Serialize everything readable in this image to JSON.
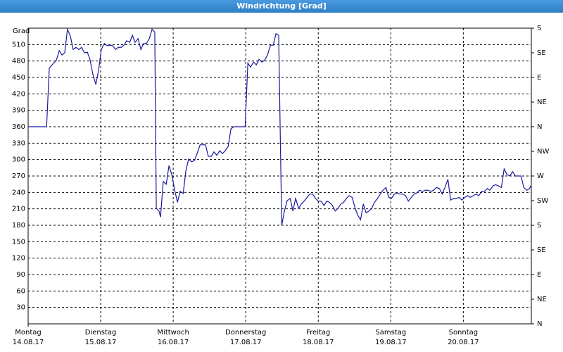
{
  "chart_data": {
    "type": "line",
    "title": "Windrichtung [Grad]",
    "y_label": "Grad",
    "color": "#1a1aa0",
    "grid": true,
    "xlim": [
      0,
      166.5
    ],
    "xticks": [
      {
        "value": 0,
        "label": "Montag\n14.08.17"
      },
      {
        "value": 24,
        "label": "Dienstag\n15.08.17"
      },
      {
        "value": 48,
        "label": "Mittwoch\n16.08.17"
      },
      {
        "value": 72,
        "label": "Donnerstag\n17.08.17"
      },
      {
        "value": 96,
        "label": "Freitag\n18.08.17"
      },
      {
        "value": 120,
        "label": "Samstag\n19.08.17"
      },
      {
        "value": 144,
        "label": "Sonntag\n20.08.17"
      }
    ],
    "ylim": [
      0,
      540
    ],
    "yticks": [
      30,
      60,
      90,
      120,
      150,
      180,
      210,
      240,
      270,
      300,
      330,
      360,
      390,
      420,
      450,
      480,
      510
    ],
    "y2lim": [
      0,
      540
    ],
    "y2ticks": [
      {
        "value": 0,
        "label": "N"
      },
      {
        "value": 45,
        "label": "NE"
      },
      {
        "value": 90,
        "label": "E"
      },
      {
        "value": 135,
        "label": "SE"
      },
      {
        "value": 180,
        "label": "S"
      },
      {
        "value": 225,
        "label": "SW"
      },
      {
        "value": 270,
        "label": "W"
      },
      {
        "value": 315,
        "label": "NW"
      },
      {
        "value": 360,
        "label": "N"
      },
      {
        "value": 405,
        "label": "NE"
      },
      {
        "value": 450,
        "label": "E"
      },
      {
        "value": 495,
        "label": "SE"
      },
      {
        "value": 540,
        "label": "S"
      }
    ],
    "x": [
      0,
      6.1,
      7.0,
      8.4,
      9.3,
      10.3,
      11.2,
      12.1,
      13.0,
      14.0,
      14.9,
      15.8,
      16.8,
      17.7,
      18.6,
      19.6,
      20.5,
      21.4,
      22.4,
      23.3,
      24.2,
      25.2,
      26.1,
      27.0,
      28.0,
      28.9,
      29.8,
      30.8,
      31.7,
      32.6,
      33.6,
      34.5,
      35.4,
      36.4,
      37.3,
      38.2,
      39.1,
      40.1,
      41.0,
      41.9,
      42.4,
      43.3,
      43.8,
      44.7,
      45.7,
      46.6,
      47.5,
      48.5,
      49.4,
      50.3,
      51.3,
      52.2,
      53.1,
      54.1,
      55.0,
      55.9,
      56.9,
      57.8,
      58.7,
      59.6,
      60.6,
      61.5,
      62.4,
      63.4,
      64.3,
      65.2,
      66.2,
      67.1,
      68.0,
      71.8,
      72.7,
      73.6,
      74.6,
      75.5,
      76.4,
      77.4,
      78.3,
      79.2,
      80.2,
      81.1,
      82.0,
      82.9,
      83.9,
      84.8,
      85.7,
      86.7,
      87.6,
      88.5,
      89.5,
      90.4,
      91.3,
      92.3,
      93.2,
      94.1,
      95.1,
      96.0,
      96.9,
      97.9,
      98.8,
      99.7,
      100.7,
      101.6,
      102.5,
      103.5,
      104.4,
      105.3,
      106.2,
      107.2,
      108.1,
      109.0,
      110.0,
      110.9,
      111.8,
      112.8,
      113.7,
      114.6,
      115.6,
      116.5,
      117.4,
      118.4,
      119.3,
      120.2,
      121.2,
      122.1,
      123.0,
      124.0,
      124.9,
      125.8,
      126.8,
      127.7,
      128.6,
      129.5,
      130.5,
      131.4,
      132.3,
      133.3,
      134.2,
      135.1,
      136.1,
      137.0,
      137.9,
      138.9,
      139.8,
      140.7,
      141.7,
      142.6,
      143.5,
      144.5,
      145.4,
      146.3,
      147.3,
      148.2,
      149.1,
      150.1,
      151.0,
      151.9,
      152.8,
      153.8,
      154.7,
      155.6,
      156.6,
      157.5,
      158.4,
      159.4,
      160.3,
      161.2,
      162.2,
      163.1,
      164.0,
      165.0,
      165.9,
      166.3
    ],
    "values": [
      360,
      360,
      467,
      476,
      481,
      499,
      491,
      495,
      538,
      525,
      501,
      505,
      501,
      505,
      495,
      496,
      482,
      456,
      437,
      463,
      501,
      512,
      508,
      509,
      508,
      501,
      505,
      505,
      509,
      517,
      514,
      527,
      514,
      521,
      501,
      512,
      512,
      521,
      538,
      533,
      211,
      206,
      195,
      260,
      255,
      289,
      273,
      244,
      222,
      242,
      238,
      280,
      301,
      296,
      298,
      311,
      327,
      327,
      327,
      306,
      306,
      314,
      308,
      316,
      311,
      316,
      324,
      356,
      360,
      360,
      476,
      469,
      478,
      473,
      483,
      478,
      482,
      491,
      509,
      509,
      530,
      527,
      180,
      206,
      225,
      229,
      206,
      229,
      211,
      219,
      224,
      231,
      237,
      237,
      229,
      224,
      224,
      216,
      224,
      222,
      216,
      206,
      211,
      219,
      222,
      229,
      234,
      231,
      213,
      199,
      190,
      219,
      203,
      206,
      211,
      222,
      229,
      237,
      244,
      249,
      231,
      229,
      237,
      239,
      237,
      237,
      234,
      224,
      231,
      237,
      239,
      244,
      242,
      244,
      244,
      242,
      244,
      249,
      247,
      237,
      249,
      264,
      226,
      229,
      229,
      231,
      226,
      231,
      234,
      231,
      234,
      237,
      234,
      242,
      242,
      247,
      244,
      252,
      254,
      252,
      249,
      283,
      273,
      270,
      278,
      270,
      270,
      270,
      249,
      244,
      247,
      252
    ]
  }
}
